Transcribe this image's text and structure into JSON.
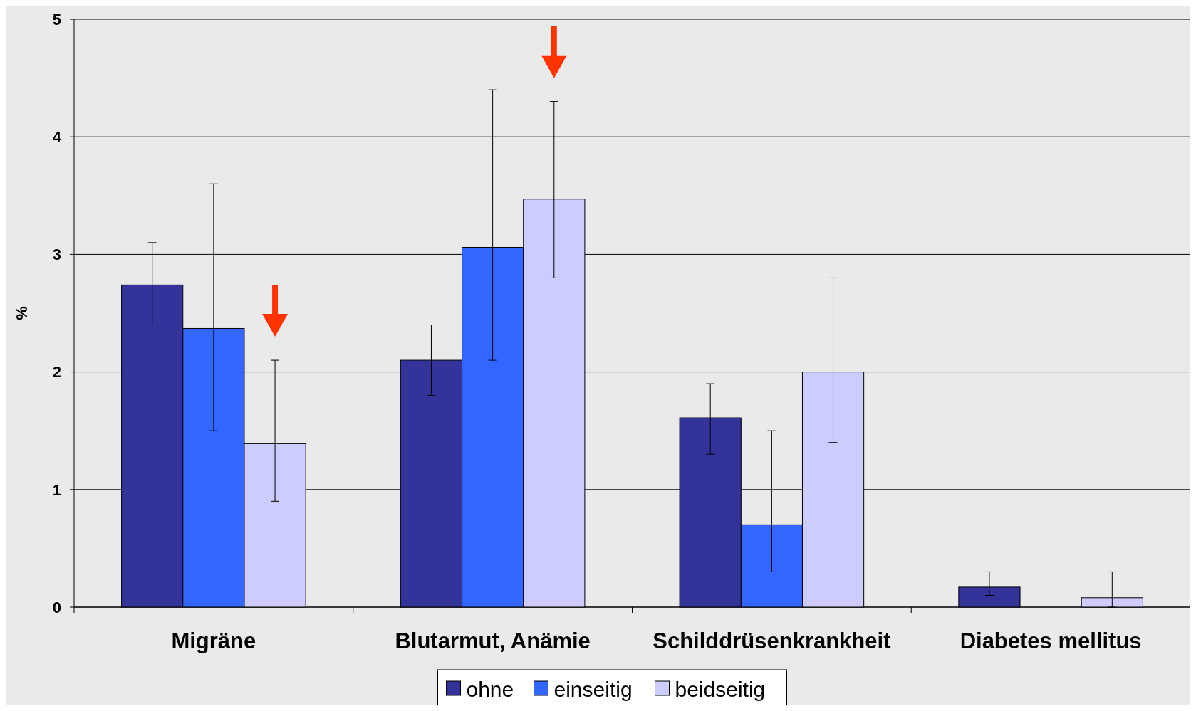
{
  "chart_data": {
    "type": "bar",
    "ylabel": "%",
    "categories": [
      "Migräne",
      "Blutarmut, Anämie",
      "Schilddrüsenkrankheit",
      "Diabetes mellitus"
    ],
    "series": [
      {
        "name": "ohne",
        "color": "#333399",
        "values": [
          2.74,
          2.1,
          1.61,
          0.17
        ],
        "errors": [
          [
            2.4,
            3.1
          ],
          [
            1.8,
            2.4
          ],
          [
            1.3,
            1.9
          ],
          [
            0.1,
            0.3
          ]
        ]
      },
      {
        "name": "einseitig",
        "color": "#3366ff",
        "values": [
          2.37,
          3.06,
          0.7,
          null
        ],
        "errors": [
          [
            1.5,
            3.6
          ],
          [
            2.1,
            4.4
          ],
          [
            0.3,
            1.5
          ],
          null
        ]
      },
      {
        "name": "beidseitig",
        "color": "#ccccff",
        "values": [
          1.39,
          3.47,
          2.0,
          0.08
        ],
        "errors": [
          [
            0.9,
            2.1
          ],
          [
            2.8,
            4.3
          ],
          [
            1.4,
            2.8
          ],
          [
            0,
            0.3
          ]
        ]
      }
    ],
    "ylim": [
      0,
      5
    ],
    "yticks": [
      0,
      1,
      2,
      3,
      4,
      5
    ],
    "grid": "y",
    "legend": "bottom"
  }
}
